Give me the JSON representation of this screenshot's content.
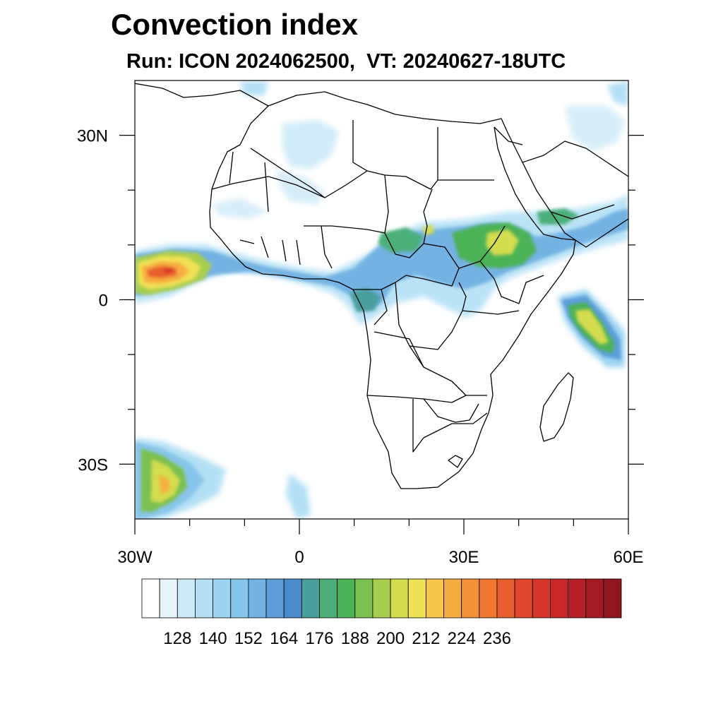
{
  "title": "Convection index",
  "subtitle": "Run: ICON 2024062500,  VT: 20240627-18UTC",
  "map": {
    "lon_range": [
      -30,
      60
    ],
    "lat_range": [
      -40,
      40
    ],
    "lon_ticks": [
      {
        "lon": -30,
        "label": "30W"
      },
      {
        "lon": 0,
        "label": "0"
      },
      {
        "lon": 30,
        "label": "30E"
      },
      {
        "lon": 60,
        "label": "60E"
      }
    ],
    "lat_ticks": [
      {
        "lat": 30,
        "label": "30N"
      },
      {
        "lat": 0,
        "label": "0"
      },
      {
        "lat": -30,
        "label": "30S"
      }
    ],
    "minor_lon_ticks": [
      -20,
      -10,
      10,
      20,
      40,
      50
    ],
    "minor_lat_ticks": [
      20,
      10,
      -10,
      -20
    ]
  },
  "colorbar": {
    "colors": [
      "#ffffff",
      "#e6f4fc",
      "#cdeaf8",
      "#b4e0f5",
      "#9dd4f1",
      "#88c5ea",
      "#73b2e2",
      "#5d9ed8",
      "#4a8bca",
      "#4a9f9d",
      "#4caf7a",
      "#4cb257",
      "#7cc04f",
      "#a9cd4d",
      "#d4dc50",
      "#f0e157",
      "#f7c64c",
      "#f6ad40",
      "#f49139",
      "#ef7732",
      "#e85e2e",
      "#e0472c",
      "#d8352c",
      "#c9282a",
      "#b61f27",
      "#a31a23",
      "#8f161f"
    ],
    "labels": [
      "128",
      "140",
      "152",
      "164",
      "176",
      "188",
      "200",
      "212",
      "224",
      "236"
    ]
  }
}
